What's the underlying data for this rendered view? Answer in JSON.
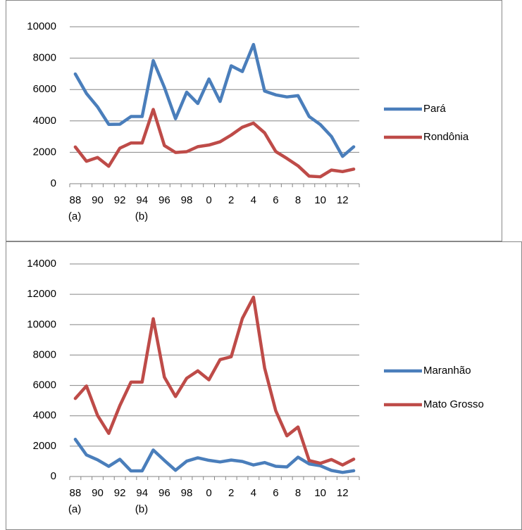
{
  "chart_data": [
    {
      "type": "line",
      "categories": [
        "88",
        null,
        "90",
        null,
        "92",
        null,
        "94",
        null,
        "96",
        null,
        "98",
        null,
        "0",
        null,
        "2",
        null,
        "4",
        null,
        "6",
        null,
        "8",
        null,
        "10",
        null,
        "12",
        null
      ],
      "category_notes": [
        "(a)",
        null,
        null,
        null,
        null,
        null,
        "(b)",
        null,
        null,
        null,
        null,
        null,
        null,
        null,
        null,
        null,
        null,
        null,
        null,
        null,
        null,
        null,
        null,
        null,
        null,
        null
      ],
      "ylim": [
        0,
        10000
      ],
      "yticks": [
        0,
        2000,
        4000,
        6000,
        8000,
        10000
      ],
      "grid": true,
      "legend": "right",
      "series": [
        {
          "name": "Pará",
          "color": "#4a7ebb",
          "values": [
            6990,
            5750,
            4890,
            3780,
            3790,
            4280,
            4280,
            7845,
            6135,
            4140,
            5830,
            5110,
            6670,
            5240,
            7510,
            7145,
            8870,
            5900,
            5660,
            5530,
            5610,
            4280,
            3770,
            3010,
            1740,
            2350
          ]
        },
        {
          "name": "Rondônia",
          "color": "#be4b48",
          "values": [
            2340,
            1430,
            1670,
            1110,
            2265,
            2595,
            2595,
            4730,
            2430,
            1990,
            2040,
            2360,
            2465,
            2670,
            3100,
            3600,
            3860,
            3240,
            2050,
            1610,
            1140,
            480,
            440,
            870,
            770,
            930
          ]
        }
      ]
    },
    {
      "type": "line",
      "categories": [
        "88",
        null,
        "90",
        null,
        "92",
        null,
        "94",
        null,
        "96",
        null,
        "98",
        null,
        "0",
        null,
        "2",
        null,
        "4",
        null,
        "6",
        null,
        "8",
        null,
        "10",
        null,
        "12",
        null
      ],
      "category_notes": [
        "(a)",
        null,
        null,
        null,
        null,
        null,
        "(b)",
        null,
        null,
        null,
        null,
        null,
        null,
        null,
        null,
        null,
        null,
        null,
        null,
        null,
        null,
        null,
        null,
        null,
        null,
        null
      ],
      "ylim": [
        0,
        14000
      ],
      "yticks": [
        0,
        2000,
        4000,
        6000,
        8000,
        10000,
        12000,
        14000
      ],
      "grid": true,
      "legend": "right",
      "series": [
        {
          "name": "Maranhão",
          "color": "#4a7ebb",
          "values": [
            2450,
            1420,
            1100,
            670,
            1135,
            370,
            370,
            1745,
            1060,
            410,
            1010,
            1230,
            1065,
            960,
            1085,
            990,
            760,
            920,
            670,
            630,
            1270,
            830,
            710,
            400,
            270,
            380
          ]
        },
        {
          "name": "Mato Grosso",
          "color": "#be4b48",
          "values": [
            5140,
            5960,
            4020,
            2840,
            4670,
            6220,
            6220,
            10390,
            6540,
            5270,
            6470,
            6960,
            6370,
            7700,
            7890,
            10410,
            11810,
            7150,
            4330,
            2680,
            3260,
            1050,
            870,
            1120,
            760,
            1140
          ]
        }
      ]
    }
  ]
}
